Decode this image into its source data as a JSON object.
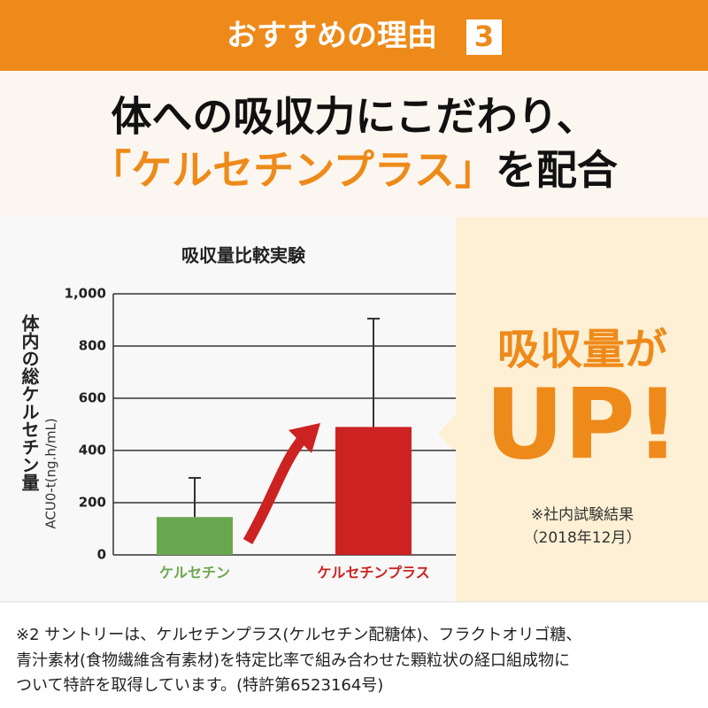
{
  "header": {
    "title": "おすすめの理由",
    "number": "3"
  },
  "headline": {
    "line1": "体への吸収力にこだわり、",
    "highlight": "「ケルセチンプラス」",
    "line2": "を配合"
  },
  "chart_data": {
    "type": "bar",
    "title": "吸収量比較実験",
    "y_label": "体内の総ケルセチン量",
    "y_unit": "ACU0-t(ng.h/mL)",
    "categories": [
      "ケルセチン",
      "ケルセチンプラス"
    ],
    "values": [
      145,
      490
    ],
    "errors": [
      150,
      415
    ],
    "colors": [
      "#6aa84f",
      "#cc2222"
    ],
    "ylim": [
      0,
      1000
    ],
    "yticks": [
      0,
      200,
      400,
      600,
      800,
      {
        "value": 1000,
        "label": "1,000"
      }
    ],
    "grid": true
  },
  "callout": {
    "line1": "吸収量が",
    "line2": "UP!",
    "note1": "※社内試験結果",
    "note2": "（2018年12月）"
  },
  "footnote": {
    "lines": [
      "※2 サントリーは、ケルセチンプラス(ケルセチン配糖体)、フラクトオリゴ糖、",
      "青汁素材(食物繊維含有素材)を特定比率で組み合わせた顆粒状の経口組成物に",
      "ついて特許を取得しています。(特許第6523164号)"
    ]
  }
}
